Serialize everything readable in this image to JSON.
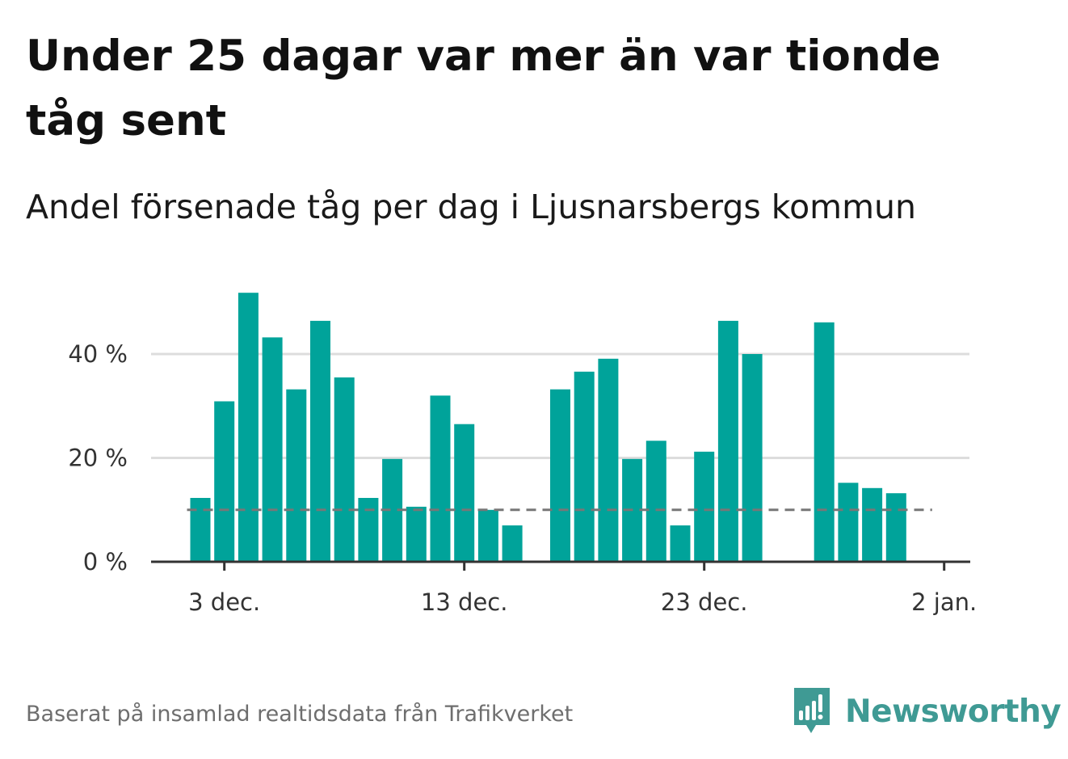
{
  "title": "Under 25 dagar var mer än var tionde tåg sent",
  "subtitle": "Andel försenade tåg per dag i Ljusnarsbergs kommun",
  "footer": "Baserat på insamlad realtidsdata från Trafikverket",
  "brand": {
    "name": "Newsworthy",
    "logo_icon": "bar-chart-speech-bubble-icon",
    "color": "#3f9a94"
  },
  "colors": {
    "bar": "#00a39a",
    "gridline": "#dddddd",
    "axis": "#333333",
    "reference_line": "#777777"
  },
  "chart_data": {
    "type": "bar",
    "x_axis": {
      "start_date": "2023-12-02",
      "ticks": [
        {
          "label": "3 dec.",
          "date": "2023-12-03"
        },
        {
          "label": "13 dec.",
          "date": "2023-12-13"
        },
        {
          "label": "23 dec.",
          "date": "2023-12-23"
        },
        {
          "label": "2 jan.",
          "date": "2024-01-02"
        }
      ]
    },
    "y_axis": {
      "ylim": [
        0,
        52
      ],
      "ticks": [
        {
          "label": "0 %",
          "value": 0
        },
        {
          "label": "20 %",
          "value": 20
        },
        {
          "label": "40 %",
          "value": 40
        }
      ],
      "grid": true
    },
    "reference_line": {
      "value": 10,
      "style": "dashed"
    },
    "series": [
      {
        "values": [
          {
            "date": "2023-12-02",
            "value": 12.3
          },
          {
            "date": "2023-12-03",
            "value": 30.9
          },
          {
            "date": "2023-12-04",
            "value": 51.8
          },
          {
            "date": "2023-12-05",
            "value": 43.2
          },
          {
            "date": "2023-12-06",
            "value": 33.2
          },
          {
            "date": "2023-12-07",
            "value": 46.4
          },
          {
            "date": "2023-12-08",
            "value": 35.5
          },
          {
            "date": "2023-12-09",
            "value": 12.3
          },
          {
            "date": "2023-12-10",
            "value": 19.8
          },
          {
            "date": "2023-12-11",
            "value": 10.6
          },
          {
            "date": "2023-12-12",
            "value": 32.0
          },
          {
            "date": "2023-12-13",
            "value": 26.5
          },
          {
            "date": "2023-12-14",
            "value": 10.0
          },
          {
            "date": "2023-12-15",
            "value": 7.0
          },
          {
            "date": "2023-12-17",
            "value": 33.2
          },
          {
            "date": "2023-12-18",
            "value": 36.6
          },
          {
            "date": "2023-12-19",
            "value": 39.1
          },
          {
            "date": "2023-12-20",
            "value": 19.8
          },
          {
            "date": "2023-12-21",
            "value": 23.3
          },
          {
            "date": "2023-12-22",
            "value": 7.0
          },
          {
            "date": "2023-12-23",
            "value": 21.2
          },
          {
            "date": "2023-12-24",
            "value": 46.4
          },
          {
            "date": "2023-12-25",
            "value": 40.0
          },
          {
            "date": "2023-12-28",
            "value": 46.1
          },
          {
            "date": "2023-12-29",
            "value": 15.2
          },
          {
            "date": "2023-12-30",
            "value": 14.2
          },
          {
            "date": "2023-12-31",
            "value": 13.2
          }
        ]
      }
    ]
  }
}
